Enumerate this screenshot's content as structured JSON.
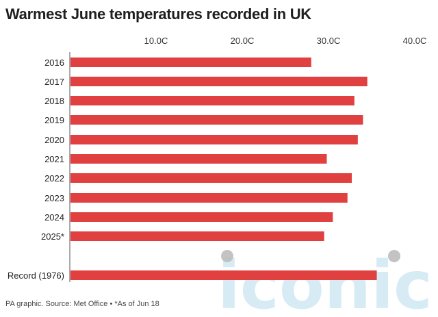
{
  "title": "Warmest June temperatures recorded in UK",
  "footer": "PA graphic. Source: Met Office • *As of Jun 18",
  "watermark": "iconic",
  "colors": {
    "bar": "#e0403f",
    "axis": "#555555",
    "watermark": "#cfe8f3"
  },
  "chart_data": {
    "type": "bar",
    "orientation": "horizontal",
    "title": "Warmest June temperatures recorded in UK",
    "xlabel": "",
    "ylabel": "",
    "xlim": [
      0,
      40
    ],
    "x_ticks": [
      10,
      20,
      30,
      40
    ],
    "x_tick_labels": [
      "10.0C",
      "20.0C",
      "30.0C",
      "40.0C"
    ],
    "categories": [
      "2016",
      "2017",
      "2018",
      "2019",
      "2020",
      "2021",
      "2022",
      "2023",
      "2024",
      "2025*",
      "Record (1976)"
    ],
    "values": [
      28.0,
      34.5,
      33.0,
      34.0,
      33.4,
      29.8,
      32.7,
      32.2,
      30.5,
      29.5,
      35.6
    ],
    "grid": false,
    "legend": "none"
  }
}
